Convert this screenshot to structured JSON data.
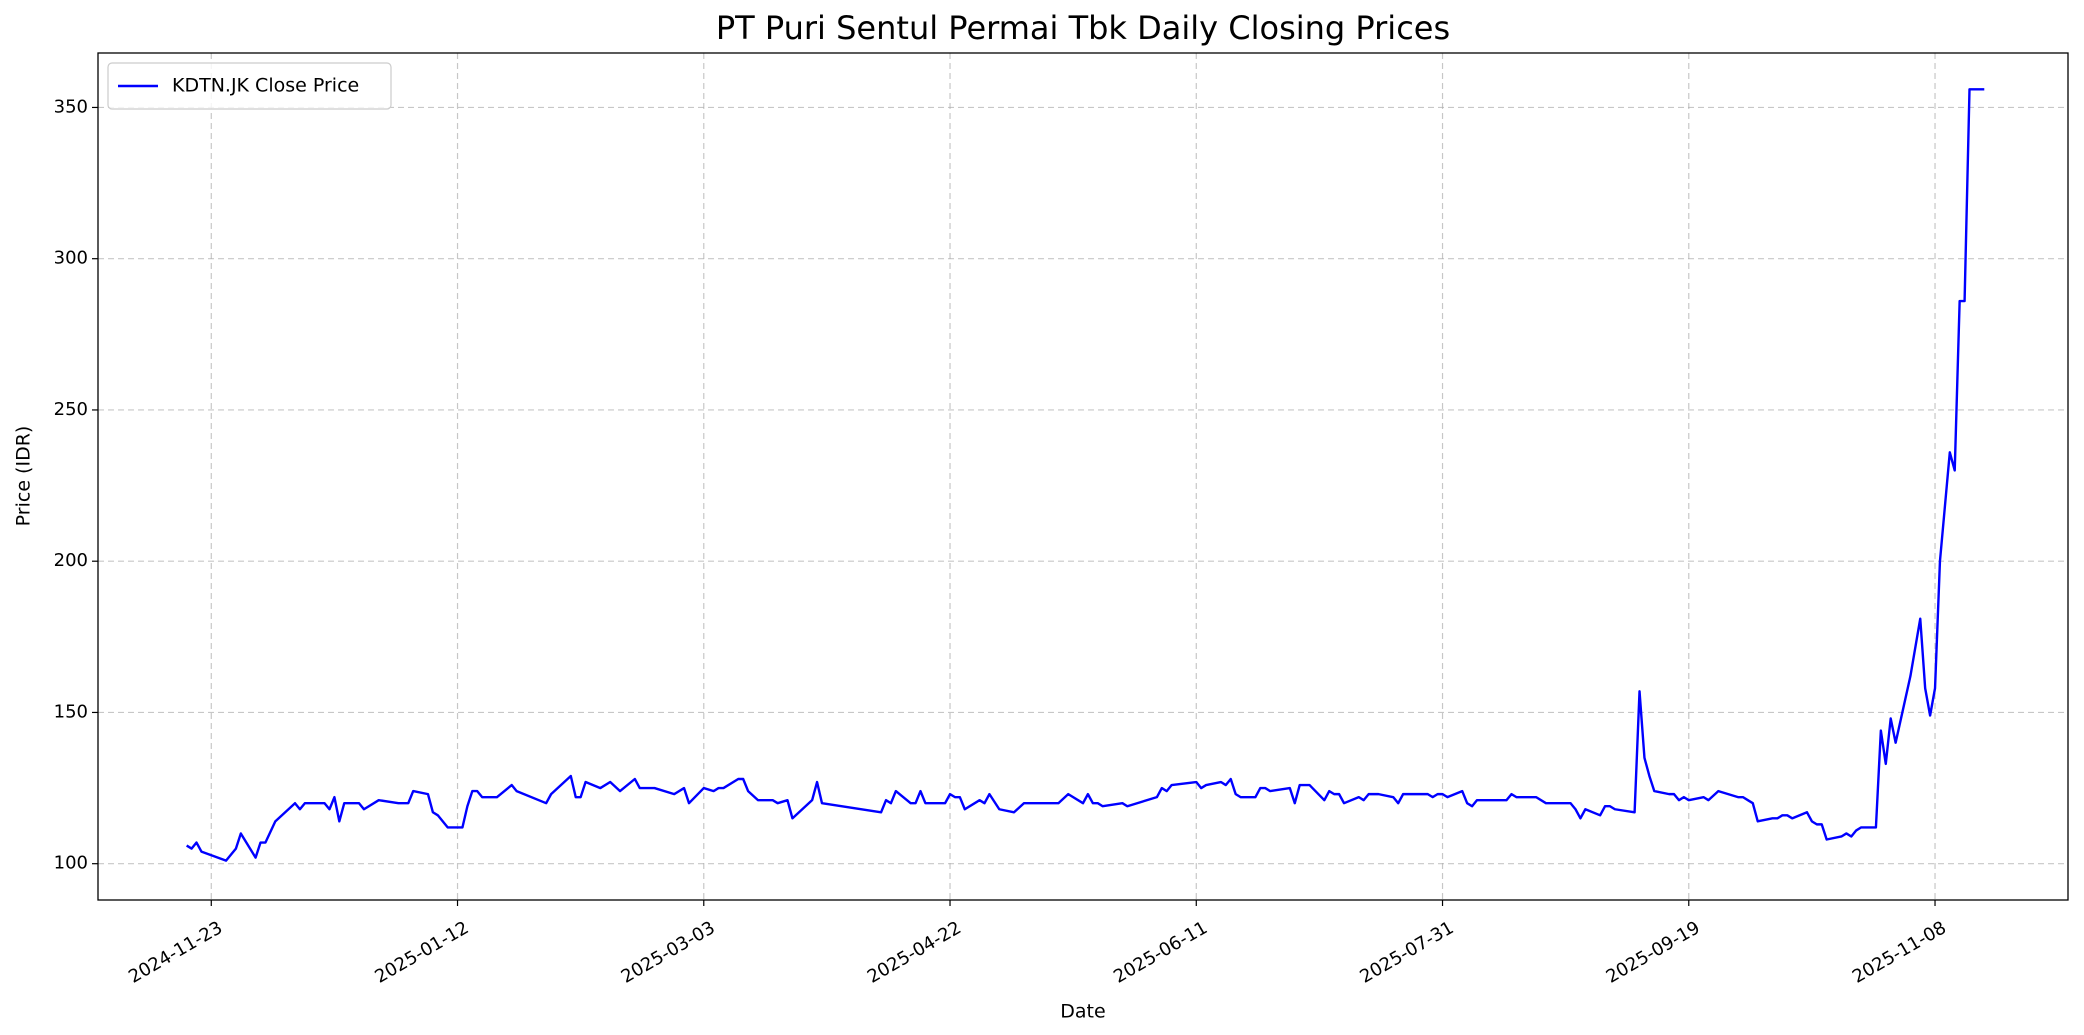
{
  "chart_data": {
    "type": "line",
    "title": "PT Puri Sentul Permai Tbk Daily Closing Prices",
    "x_label": "Date",
    "y_label": "Price (IDR)",
    "x": [
      "2024-11-18",
      "2024-11-19",
      "2024-11-20",
      "2024-11-21",
      "2024-11-26",
      "2024-11-28",
      "2024-11-29",
      "2024-12-02",
      "2024-12-03",
      "2024-12-04",
      "2024-12-06",
      "2024-12-10",
      "2024-12-11",
      "2024-12-12",
      "2024-12-16",
      "2024-12-17",
      "2024-12-18",
      "2024-12-19",
      "2024-12-20",
      "2024-12-23",
      "2024-12-24",
      "2024-12-27",
      "2024-12-31",
      "2025-01-02",
      "2025-01-03",
      "2025-01-06",
      "2025-01-07",
      "2025-01-08",
      "2025-01-10",
      "2025-01-13",
      "2025-01-14",
      "2025-01-15",
      "2025-01-16",
      "2025-01-17",
      "2025-01-20",
      "2025-01-23",
      "2025-01-24",
      "2025-01-30",
      "2025-01-31",
      "2025-02-04",
      "2025-02-05",
      "2025-02-06",
      "2025-02-07",
      "2025-02-10",
      "2025-02-12",
      "2025-02-14",
      "2025-02-17",
      "2025-02-18",
      "2025-02-21",
      "2025-02-25",
      "2025-02-27",
      "2025-02-28",
      "2025-03-03",
      "2025-03-05",
      "2025-03-06",
      "2025-03-07",
      "2025-03-10",
      "2025-03-11",
      "2025-03-12",
      "2025-03-14",
      "2025-03-17",
      "2025-03-18",
      "2025-03-20",
      "2025-03-21",
      "2025-03-25",
      "2025-03-26",
      "2025-03-27",
      "2025-04-08",
      "2025-04-09",
      "2025-04-10",
      "2025-04-11",
      "2025-04-14",
      "2025-04-15",
      "2025-04-16",
      "2025-04-17",
      "2025-04-21",
      "2025-04-22",
      "2025-04-23",
      "2025-04-24",
      "2025-04-25",
      "2025-04-28",
      "2025-04-29",
      "2025-04-30",
      "2025-05-02",
      "2025-05-05",
      "2025-05-07",
      "2025-05-14",
      "2025-05-16",
      "2025-05-19",
      "2025-05-20",
      "2025-05-21",
      "2025-05-22",
      "2025-05-23",
      "2025-05-27",
      "2025-05-28",
      "2025-06-03",
      "2025-06-04",
      "2025-06-05",
      "2025-06-06",
      "2025-06-11",
      "2025-06-12",
      "2025-06-13",
      "2025-06-16",
      "2025-06-17",
      "2025-06-18",
      "2025-06-19",
      "2025-06-20",
      "2025-06-23",
      "2025-06-24",
      "2025-06-25",
      "2025-06-26",
      "2025-06-30",
      "2025-07-01",
      "2025-07-02",
      "2025-07-04",
      "2025-07-07",
      "2025-07-08",
      "2025-07-09",
      "2025-07-10",
      "2025-07-11",
      "2025-07-14",
      "2025-07-15",
      "2025-07-16",
      "2025-07-18",
      "2025-07-21",
      "2025-07-22",
      "2025-07-23",
      "2025-07-28",
      "2025-07-29",
      "2025-07-30",
      "2025-07-31",
      "2025-08-01",
      "2025-08-04",
      "2025-08-05",
      "2025-08-06",
      "2025-08-07",
      "2025-08-13",
      "2025-08-14",
      "2025-08-15",
      "2025-08-19",
      "2025-08-21",
      "2025-08-26",
      "2025-08-27",
      "2025-08-28",
      "2025-08-29",
      "2025-09-01",
      "2025-09-02",
      "2025-09-03",
      "2025-09-04",
      "2025-09-08",
      "2025-09-09",
      "2025-09-10",
      "2025-09-11",
      "2025-09-12",
      "2025-09-15",
      "2025-09-16",
      "2025-09-17",
      "2025-09-18",
      "2025-09-19",
      "2025-09-22",
      "2025-09-23",
      "2025-09-25",
      "2025-09-29",
      "2025-09-30",
      "2025-10-01",
      "2025-10-02",
      "2025-10-03",
      "2025-10-06",
      "2025-10-07",
      "2025-10-08",
      "2025-10-09",
      "2025-10-10",
      "2025-10-13",
      "2025-10-14",
      "2025-10-15",
      "2025-10-16",
      "2025-10-17",
      "2025-10-20",
      "2025-10-21",
      "2025-10-22",
      "2025-10-23",
      "2025-10-24",
      "2025-10-27",
      "2025-10-28",
      "2025-10-29",
      "2025-10-30",
      "2025-10-31",
      "2025-11-03",
      "2025-11-05",
      "2025-11-06",
      "2025-11-07",
      "2025-11-08",
      "2025-11-09",
      "2025-11-11",
      "2025-11-12",
      "2025-11-13",
      "2025-11-14",
      "2025-11-15",
      "2025-11-18"
    ],
    "series": [
      {
        "name": "KDTN.JK Close Price",
        "color": "#0000ff",
        "values": [
          106,
          105,
          107,
          104,
          101,
          105,
          110,
          102,
          107,
          107,
          114,
          120,
          118,
          120,
          120,
          118,
          122,
          114,
          120,
          120,
          118,
          121,
          120,
          120,
          124,
          123,
          117,
          116,
          112,
          112,
          119,
          124,
          124,
          122,
          122,
          126,
          124,
          120,
          123,
          129,
          122,
          122,
          127,
          125,
          127,
          124,
          128,
          125,
          125,
          123,
          125,
          120,
          125,
          124,
          125,
          125,
          128,
          128,
          124,
          121,
          121,
          120,
          121,
          115,
          121,
          127,
          120,
          117,
          121,
          120,
          124,
          120,
          120,
          124,
          120,
          120,
          123,
          122,
          122,
          118,
          121,
          120,
          123,
          118,
          117,
          120,
          120,
          123,
          120,
          123,
          120,
          120,
          119,
          120,
          119,
          122,
          125,
          124,
          126,
          127,
          125,
          126,
          127,
          126,
          128,
          123,
          122,
          122,
          125,
          125,
          124,
          125,
          120,
          126,
          126,
          121,
          124,
          123,
          123,
          120,
          122,
          121,
          123,
          123,
          122,
          120,
          123,
          123,
          122,
          123,
          123,
          122,
          124,
          120,
          119,
          121,
          121,
          123,
          122,
          122,
          120,
          120,
          118,
          115,
          118,
          116,
          119,
          119,
          118,
          117,
          157,
          135,
          129,
          124,
          123,
          123,
          121,
          122,
          121,
          122,
          121,
          124,
          122,
          122,
          121,
          120,
          114,
          115,
          115,
          116,
          116,
          115,
          117,
          114,
          113,
          113,
          108,
          109,
          110,
          109,
          111,
          112,
          112,
          144,
          133,
          148,
          140,
          162,
          181,
          158,
          149,
          158,
          200,
          236,
          230,
          286,
          286,
          356,
          356
        ]
      }
    ],
    "xlim": [
      "2024-10-31",
      "2025-12-05"
    ],
    "xticks": [
      "2024-11-23",
      "2025-01-12",
      "2025-03-03",
      "2025-04-22",
      "2025-06-11",
      "2025-07-31",
      "2025-09-19",
      "2025-11-08"
    ],
    "ylim": [
      88,
      368
    ],
    "yticks": [
      100,
      150,
      200,
      250,
      300,
      350
    ],
    "grid": true,
    "legend": "upper left"
  }
}
